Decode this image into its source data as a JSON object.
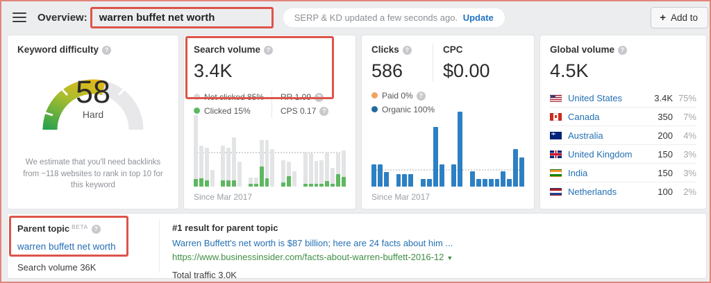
{
  "header": {
    "overview_label": "Overview:",
    "keyword": "warren buffet net worth",
    "update_pill": {
      "status": "SERP & KD updated a few seconds ago.",
      "action": "Update"
    },
    "add_to": {
      "icon": "+",
      "label": "Add to"
    }
  },
  "keyword_difficulty": {
    "title": "Keyword difficulty",
    "score": 58,
    "score_label": "58",
    "level": "Hard",
    "description": "We estimate that you'll need backlinks from ~118 websites to rank in top 10 for this keyword",
    "gauge_colors": {
      "start": "#2ba24c",
      "mid": "#a9bd2e",
      "end": "#e9b816",
      "rest": "#e8e8ea"
    }
  },
  "search_volume": {
    "title": "Search volume",
    "value": "3.4K",
    "not_clicked_label": "Not clicked 85%",
    "clicked_label": "Clicked 15%",
    "rr_label": "RR 1.09",
    "cps_label": "CPS 0.17",
    "since_label": "Since Mar 2017"
  },
  "clicks": {
    "clicks_title": "Clicks",
    "clicks_value": "586",
    "cpc_title": "CPC",
    "cpc_value": "$0.00",
    "paid_label": "Paid 0%",
    "organic_label": "Organic 100%",
    "since_label": "Since Mar 2017"
  },
  "global_volume": {
    "title": "Global volume",
    "value": "4.5K",
    "countries": [
      {
        "flag": "us",
        "name": "United States",
        "volume": "3.4K",
        "percent": "75%"
      },
      {
        "flag": "ca",
        "name": "Canada",
        "volume": "350",
        "percent": "7%"
      },
      {
        "flag": "au",
        "name": "Australia",
        "volume": "200",
        "percent": "4%"
      },
      {
        "flag": "gb",
        "name": "United Kingdom",
        "volume": "150",
        "percent": "3%"
      },
      {
        "flag": "in",
        "name": "India",
        "volume": "150",
        "percent": "3%"
      },
      {
        "flag": "nl",
        "name": "Netherlands",
        "volume": "100",
        "percent": "2%"
      }
    ]
  },
  "parent_topic": {
    "title": "Parent topic",
    "beta_label": "BETA",
    "link": "warren buffett net worth",
    "search_volume_label": "Search volume 36K",
    "result_header": "#1 result for parent topic",
    "result_title": "Warren Buffett's net worth is $87 billion; here are 24 facts about him ...",
    "result_url": "https://www.businessinsider.com/facts-about-warren-buffett-2016-12",
    "url_caret": "▼",
    "total_traffic_label": "Total traffic 3.0K"
  },
  "chart_data": [
    {
      "type": "bar",
      "name": "search-volume-trend",
      "stacked": true,
      "footnote": "Since Mar 2017",
      "unit": "relative bar height, % of chart maximum",
      "series": [
        {
          "name": "Total volume (not clicked portion shown gray)",
          "color": "#e3e4e6",
          "values": [
            95,
            55,
            52,
            22,
            55,
            52,
            66,
            33,
            12,
            12,
            62,
            62,
            50,
            35,
            33,
            20,
            46,
            44,
            34,
            35,
            46,
            25,
            44,
            48
          ]
        },
        {
          "name": "Clicked",
          "color": "#5fb761",
          "values": [
            10,
            11,
            8,
            0,
            8,
            8,
            8,
            0,
            4,
            4,
            27,
            11,
            0,
            6,
            14,
            0,
            4,
            4,
            4,
            4,
            7,
            4,
            17,
            13
          ]
        }
      ],
      "gaps_after": [
        3,
        7,
        12,
        15
      ],
      "reference_line_pct": 44
    },
    {
      "type": "bar",
      "name": "clicks-trend",
      "stacked": false,
      "footnote": "Since Mar 2017",
      "unit": "relative bar height, % of chart maximum",
      "series": [
        {
          "name": "Clicks",
          "color": "#2d80c3",
          "values": [
            30,
            30,
            19,
            17,
            17,
            17,
            10,
            10,
            80,
            30,
            30,
            100,
            20,
            10,
            10,
            10,
            10,
            20,
            10,
            50,
            39
          ]
        }
      ],
      "gaps_after": [
        2,
        5,
        9,
        11
      ],
      "reference_line_pct": 21
    }
  ]
}
